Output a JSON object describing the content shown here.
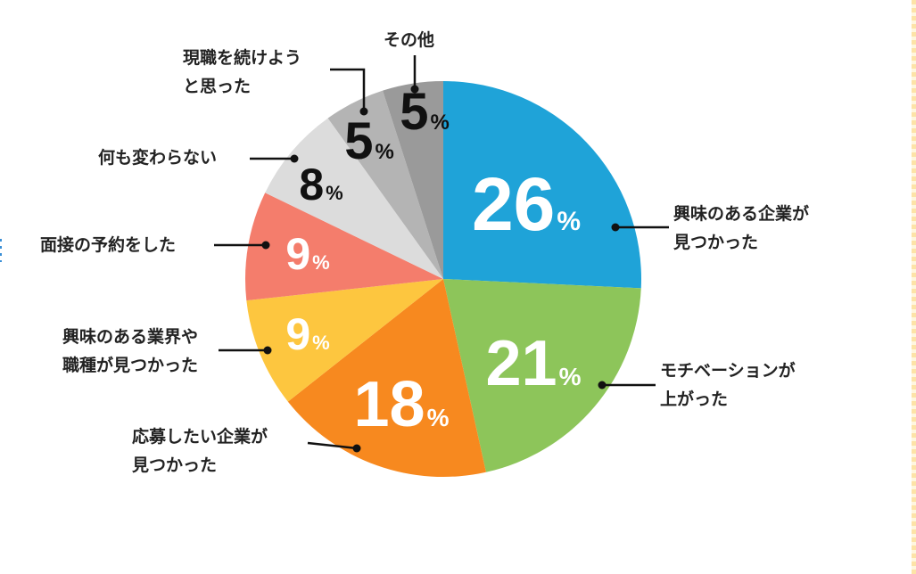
{
  "chart_data": {
    "type": "pie",
    "start": "top",
    "direction": "clockwise",
    "slices": [
      {
        "label": [
          "興味のある企業が",
          "見つかった"
        ],
        "value": 26,
        "color": "#1fa3d8",
        "text_color": "#ffffff"
      },
      {
        "label": [
          "モチベーションが",
          "上がった"
        ],
        "value": 21,
        "color": "#8dc55a",
        "text_color": "#ffffff"
      },
      {
        "label": [
          "応募したい企業が",
          "見つかった"
        ],
        "value": 18,
        "color": "#f7891f",
        "text_color": "#ffffff"
      },
      {
        "label": [
          "興味のある業界や",
          "職種が見つかった"
        ],
        "value": 9,
        "color": "#fdc63f",
        "text_color": "#ffffff"
      },
      {
        "label": [
          "面接の予約をした"
        ],
        "value": 9,
        "color": "#f47d6c",
        "text_color": "#ffffff"
      },
      {
        "label": [
          "何も変わらない"
        ],
        "value": 8,
        "color": "#dcdcdc",
        "text_color": "#111111"
      },
      {
        "label": [
          "現職を続けよう",
          "と思った"
        ],
        "value": 5,
        "color": "#b4b4b4",
        "text_color": "#111111"
      },
      {
        "label": [
          "その他"
        ],
        "value": 5,
        "color": "#9a9a9a",
        "text_color": "#111111"
      }
    ],
    "unit": "%"
  }
}
